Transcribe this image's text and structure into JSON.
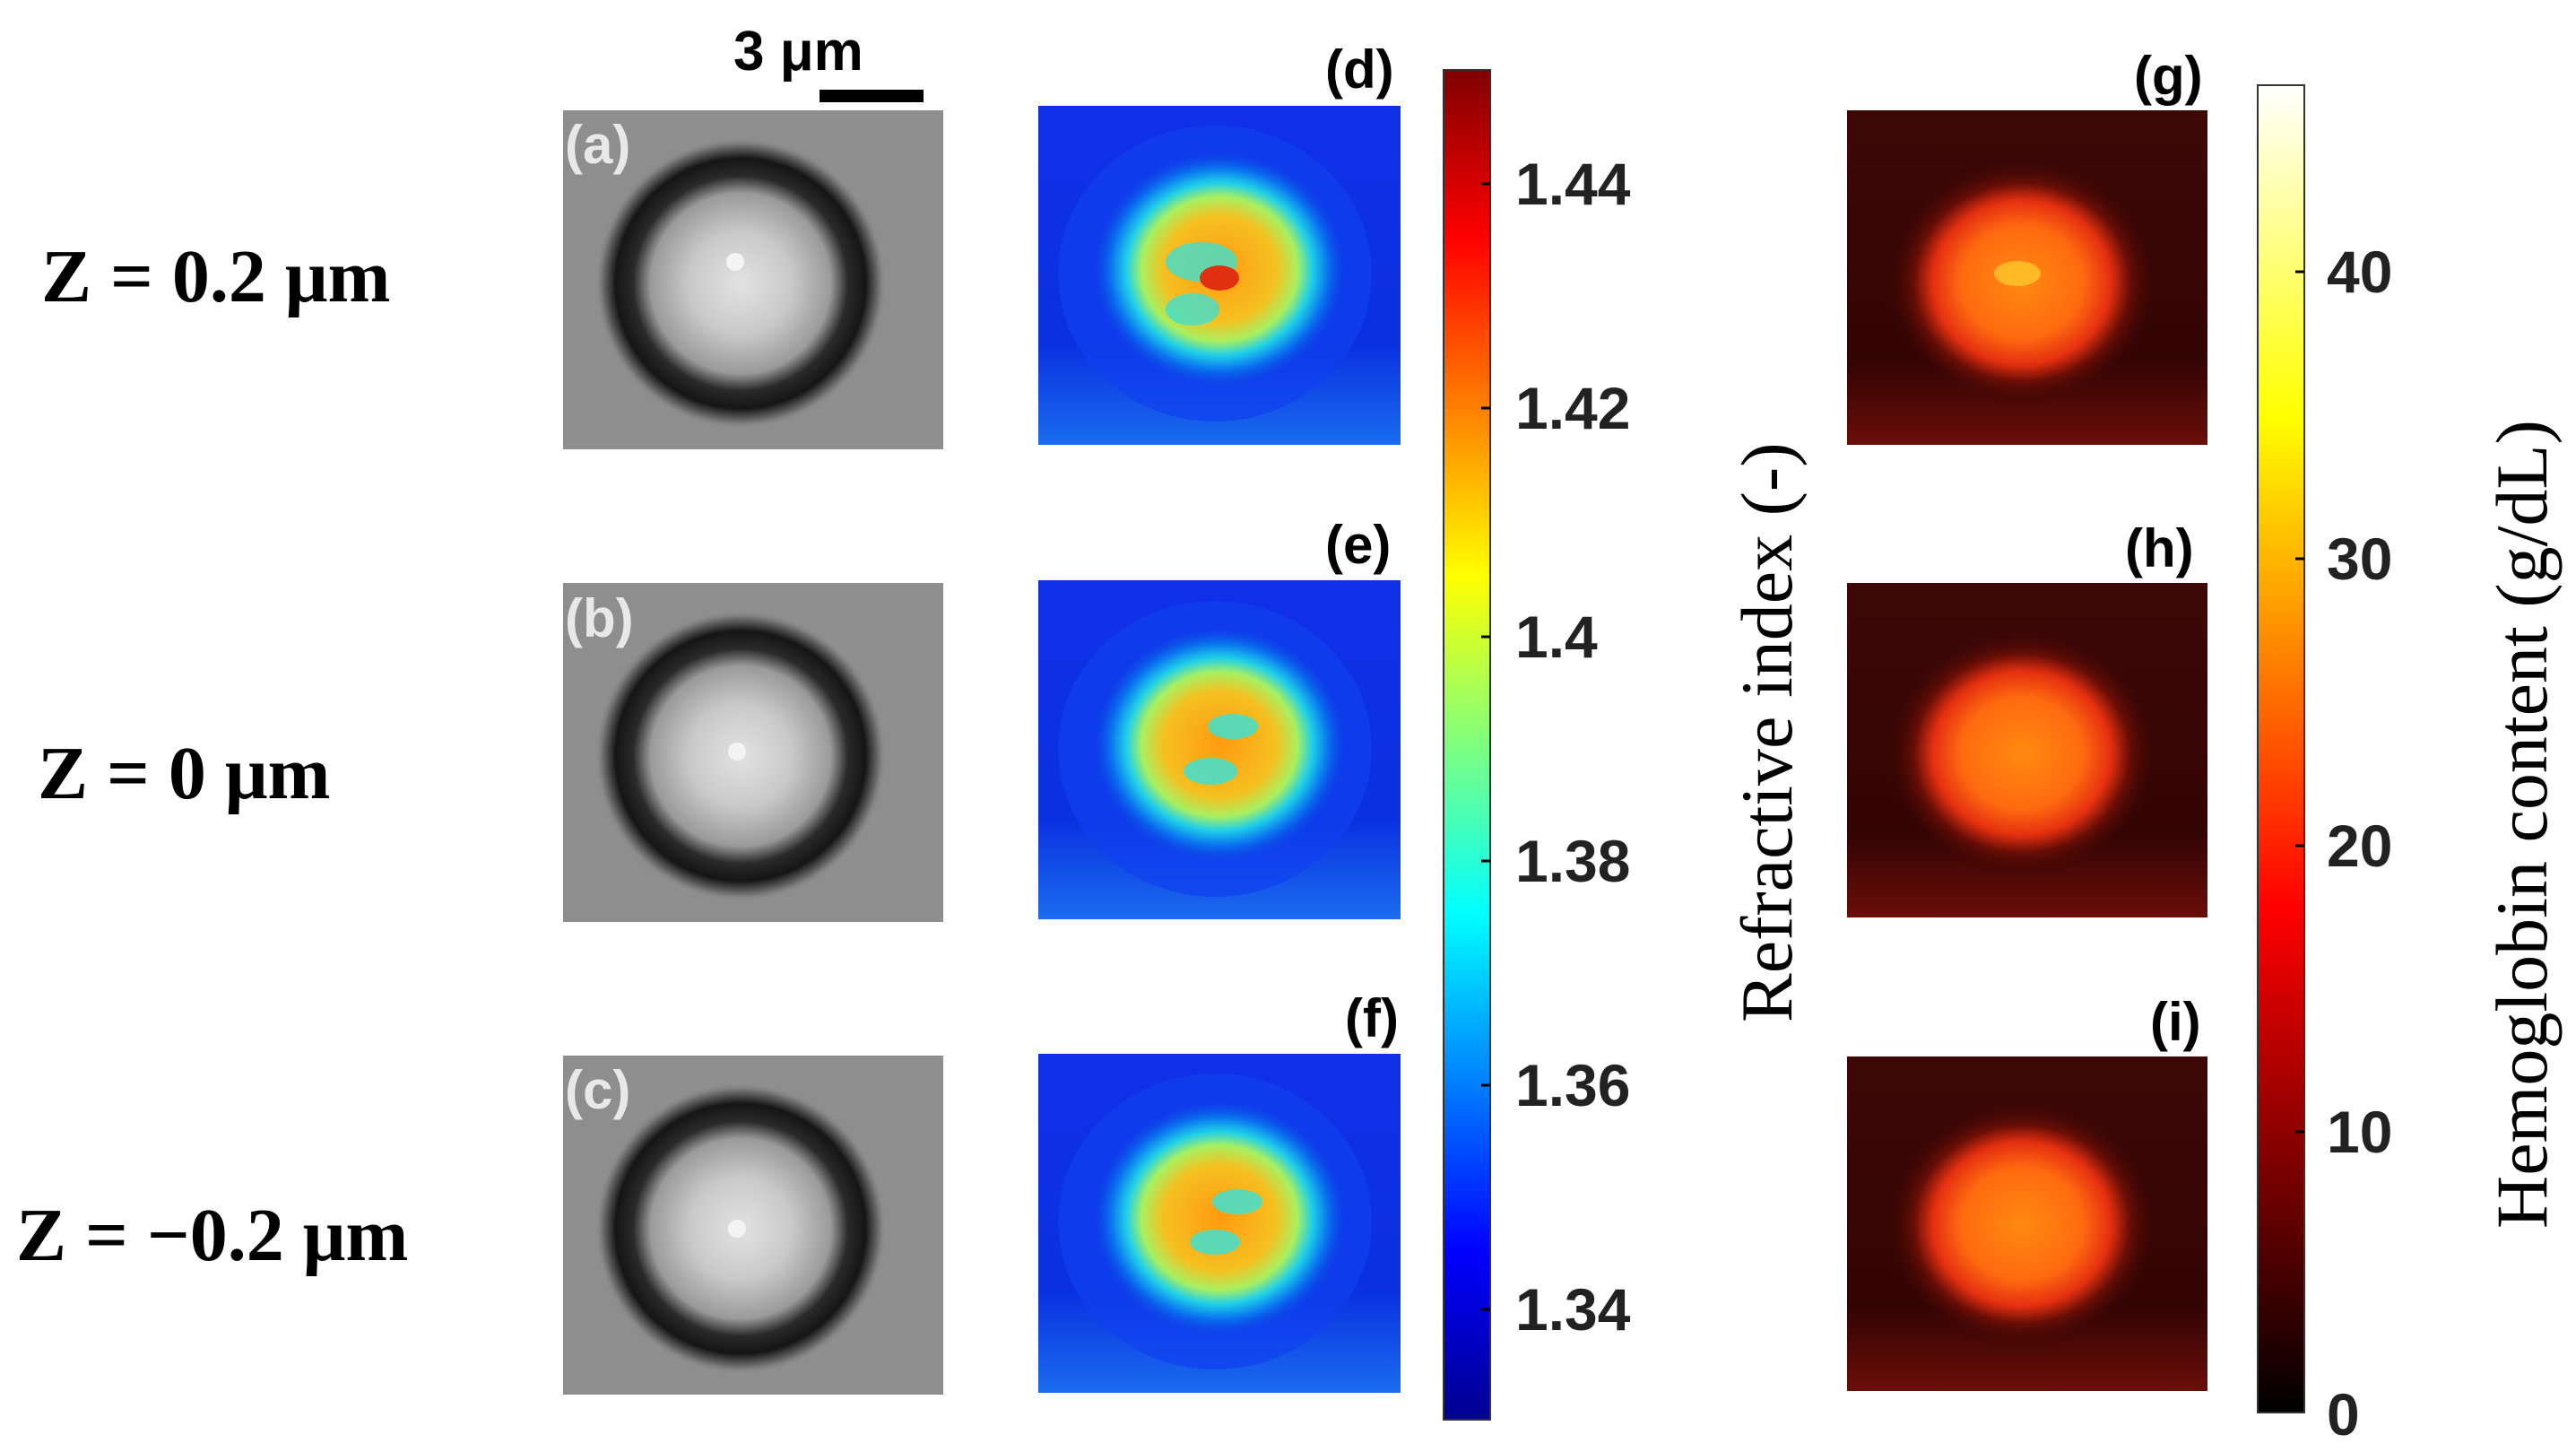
{
  "scale_bar": {
    "label": "3 μm"
  },
  "rows": [
    {
      "z_label": "Z = 0.2 μm",
      "panels": [
        "(a)",
        "(d)",
        "(g)"
      ]
    },
    {
      "z_label": "Z = 0 μm",
      "panels": [
        "(b)",
        "(e)",
        "(h)"
      ]
    },
    {
      "z_label": "Z = −0.2 μm",
      "panels": [
        "(c)",
        "(f)",
        "(i)"
      ]
    }
  ],
  "colorbar_ri": {
    "label": "Refractive index (-)",
    "ticks": [
      "1.44",
      "1.42",
      "1.4",
      "1.38",
      "1.36",
      "1.34"
    ],
    "colormap": "jet",
    "colors": [
      "#00008f",
      "#0000ff",
      "#00ffff",
      "#ffff00",
      "#ff0000",
      "#800000"
    ]
  },
  "colorbar_hb": {
    "label": "Hemoglobin content (g/dL)",
    "ticks": [
      "40",
      "30",
      "20",
      "10",
      "0"
    ],
    "colormap": "hot",
    "colors": [
      "#000000",
      "#ff0000",
      "#ffff00",
      "#ffffff"
    ]
  }
}
